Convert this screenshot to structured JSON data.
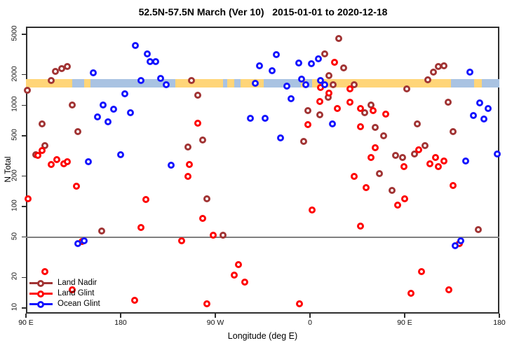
{
  "chart_data": {
    "type": "scatter",
    "title": "52.5N-57.5N March (Ver 10)   2015-01-01 to 2020-12-18",
    "xlabel": "Longitude (deg E)",
    "ylabel": "N Total",
    "x_axis": {
      "note_visible_ticks_only": true,
      "extended_deg_east_range": [
        90,
        540
      ],
      "ticks": [
        {
          "pos": 90,
          "label": "90 E"
        },
        {
          "pos": 180,
          "label": "180"
        },
        {
          "pos": 270,
          "label": "90 W"
        },
        {
          "pos": 360,
          "label": "0"
        },
        {
          "pos": 450,
          "label": "90 E"
        },
        {
          "pos": 540,
          "label": "180"
        }
      ]
    },
    "y_axis": {
      "scale": "log10",
      "range": [
        8.8,
        5970
      ],
      "ticks": [
        {
          "v": 5000,
          "label": "5000"
        },
        {
          "v": 2000,
          "label": "2000"
        },
        {
          "v": 1000,
          "label": "1000"
        },
        {
          "v": 500,
          "label": "500"
        },
        {
          "v": 200,
          "label": "200"
        },
        {
          "v": 100,
          "label": "100"
        },
        {
          "v": 50,
          "label": "50"
        },
        {
          "v": 20,
          "label": "20"
        },
        {
          "v": 10,
          "label": "10"
        }
      ]
    },
    "grid": false,
    "legend_position": "bottom-left-inside",
    "reference_line_y": 50,
    "reference_line_color": "#808080",
    "coastline_band": {
      "y_value_range": [
        1500,
        1810
      ],
      "land_color": "#FFD578",
      "ocean_color": "#A9C3E2",
      "segments": [
        {
          "from": 90,
          "to": 134,
          "type": "land"
        },
        {
          "from": 134,
          "to": 145,
          "type": "ocean"
        },
        {
          "from": 145,
          "to": 151,
          "type": "land"
        },
        {
          "from": 151,
          "to": 232,
          "type": "ocean"
        },
        {
          "from": 232,
          "to": 277,
          "type": "land"
        },
        {
          "from": 277,
          "to": 281,
          "type": "ocean"
        },
        {
          "from": 281,
          "to": 288,
          "type": "land"
        },
        {
          "from": 288,
          "to": 294,
          "type": "ocean"
        },
        {
          "from": 294,
          "to": 316,
          "type": "land"
        },
        {
          "from": 316,
          "to": 351,
          "type": "ocean"
        },
        {
          "from": 351,
          "to": 356,
          "type": "land"
        },
        {
          "from": 356,
          "to": 362,
          "type": "ocean"
        },
        {
          "from": 362,
          "to": 494,
          "type": "land"
        },
        {
          "from": 494,
          "to": 516,
          "type": "ocean"
        },
        {
          "from": 516,
          "to": 523,
          "type": "land"
        },
        {
          "from": 523,
          "to": 540,
          "type": "ocean"
        }
      ]
    },
    "series": [
      {
        "name": "Land Nadir",
        "key": "land-nadir",
        "color": "#A13434",
        "points": [
          [
            91,
            1400
          ],
          [
            99,
            325
          ],
          [
            105,
            650
          ],
          [
            108,
            400
          ],
          [
            114,
            1750
          ],
          [
            118,
            2150
          ],
          [
            124,
            2300
          ],
          [
            129,
            2400
          ],
          [
            134,
            1000
          ],
          [
            139,
            545
          ],
          [
            162,
            57
          ],
          [
            244,
            390
          ],
          [
            247,
            1750
          ],
          [
            253,
            1250
          ],
          [
            258,
            455
          ],
          [
            262,
            120
          ],
          [
            277,
            52
          ],
          [
            354,
            437
          ],
          [
            358,
            885
          ],
          [
            369,
            800
          ],
          [
            374,
            3180
          ],
          [
            377,
            1200
          ],
          [
            378,
            1960
          ],
          [
            382,
            1600
          ],
          [
            387,
            4550
          ],
          [
            392,
            2330
          ],
          [
            402,
            1600
          ],
          [
            412,
            840
          ],
          [
            418,
            1010
          ],
          [
            422,
            600
          ],
          [
            426,
            213
          ],
          [
            430,
            500
          ],
          [
            438,
            145
          ],
          [
            441,
            320
          ],
          [
            448,
            303
          ],
          [
            452,
            1440
          ],
          [
            459,
            330
          ],
          [
            462,
            655
          ],
          [
            469,
            400
          ],
          [
            472,
            1770
          ],
          [
            477,
            2130
          ],
          [
            482,
            2400
          ],
          [
            487,
            2450
          ],
          [
            491,
            1065
          ],
          [
            496,
            545
          ],
          [
            520,
            59
          ]
        ]
      },
      {
        "name": "Land Glint",
        "key": "land-glint",
        "color": "#FE0000",
        "points": [
          [
            92,
            120
          ],
          [
            101,
            320
          ],
          [
            105,
            360
          ],
          [
            108,
            23
          ],
          [
            114,
            260
          ],
          [
            119,
            290
          ],
          [
            126,
            265
          ],
          [
            129,
            277
          ],
          [
            134,
            15
          ],
          [
            138,
            160
          ],
          [
            143,
            45
          ],
          [
            193,
            12
          ],
          [
            199,
            62
          ],
          [
            204,
            117
          ],
          [
            238,
            46
          ],
          [
            244,
            200
          ],
          [
            245,
            260
          ],
          [
            253,
            660
          ],
          [
            258,
            76
          ],
          [
            262,
            11
          ],
          [
            268,
            52
          ],
          [
            288,
            21
          ],
          [
            292,
            27
          ],
          [
            298,
            18
          ],
          [
            350,
            11
          ],
          [
            358,
            640
          ],
          [
            362,
            93
          ],
          [
            369,
            1080
          ],
          [
            370,
            1500
          ],
          [
            378,
            1320
          ],
          [
            383,
            2650
          ],
          [
            386,
            930
          ],
          [
            398,
            1440
          ],
          [
            398,
            1070
          ],
          [
            402,
            198
          ],
          [
            408,
            615
          ],
          [
            408,
            930
          ],
          [
            408,
            64
          ],
          [
            413,
            153
          ],
          [
            418,
            303
          ],
          [
            420,
            880
          ],
          [
            422,
            382
          ],
          [
            432,
            815
          ],
          [
            443,
            103
          ],
          [
            449,
            246
          ],
          [
            450,
            120
          ],
          [
            456,
            14
          ],
          [
            463,
            365
          ],
          [
            466,
            23
          ],
          [
            474,
            266
          ],
          [
            479,
            303
          ],
          [
            482,
            246
          ],
          [
            487,
            280
          ],
          [
            492,
            15
          ],
          [
            496,
            162
          ],
          [
            502,
            43
          ]
        ]
      },
      {
        "name": "Ocean Glint",
        "key": "ocean-glint",
        "color": "#1414FE",
        "points": [
          [
            139,
            43
          ],
          [
            145,
            46
          ],
          [
            149,
            277
          ],
          [
            154,
            2100
          ],
          [
            158,
            770
          ],
          [
            163,
            1000
          ],
          [
            168,
            690
          ],
          [
            173,
            920
          ],
          [
            180,
            327
          ],
          [
            184,
            1290
          ],
          [
            189,
            840
          ],
          [
            194,
            3900
          ],
          [
            199,
            1750
          ],
          [
            205,
            3200
          ],
          [
            208,
            2700
          ],
          [
            213,
            2700
          ],
          [
            218,
            1840
          ],
          [
            223,
            1600
          ],
          [
            228,
            257
          ],
          [
            303,
            745
          ],
          [
            308,
            1650
          ],
          [
            312,
            2450
          ],
          [
            317,
            745
          ],
          [
            324,
            2200
          ],
          [
            328,
            3150
          ],
          [
            332,
            475
          ],
          [
            338,
            1550
          ],
          [
            342,
            1160
          ],
          [
            349,
            2600
          ],
          [
            352,
            1800
          ],
          [
            356,
            1600
          ],
          [
            361,
            2550
          ],
          [
            368,
            2850
          ],
          [
            370,
            1750
          ],
          [
            374,
            1600
          ],
          [
            381,
            650
          ],
          [
            498,
            41
          ],
          [
            503,
            46
          ],
          [
            508,
            280
          ],
          [
            512,
            2130
          ],
          [
            515,
            790
          ],
          [
            521,
            1055
          ],
          [
            525,
            730
          ],
          [
            529,
            930
          ],
          [
            538,
            330
          ]
        ]
      }
    ]
  }
}
